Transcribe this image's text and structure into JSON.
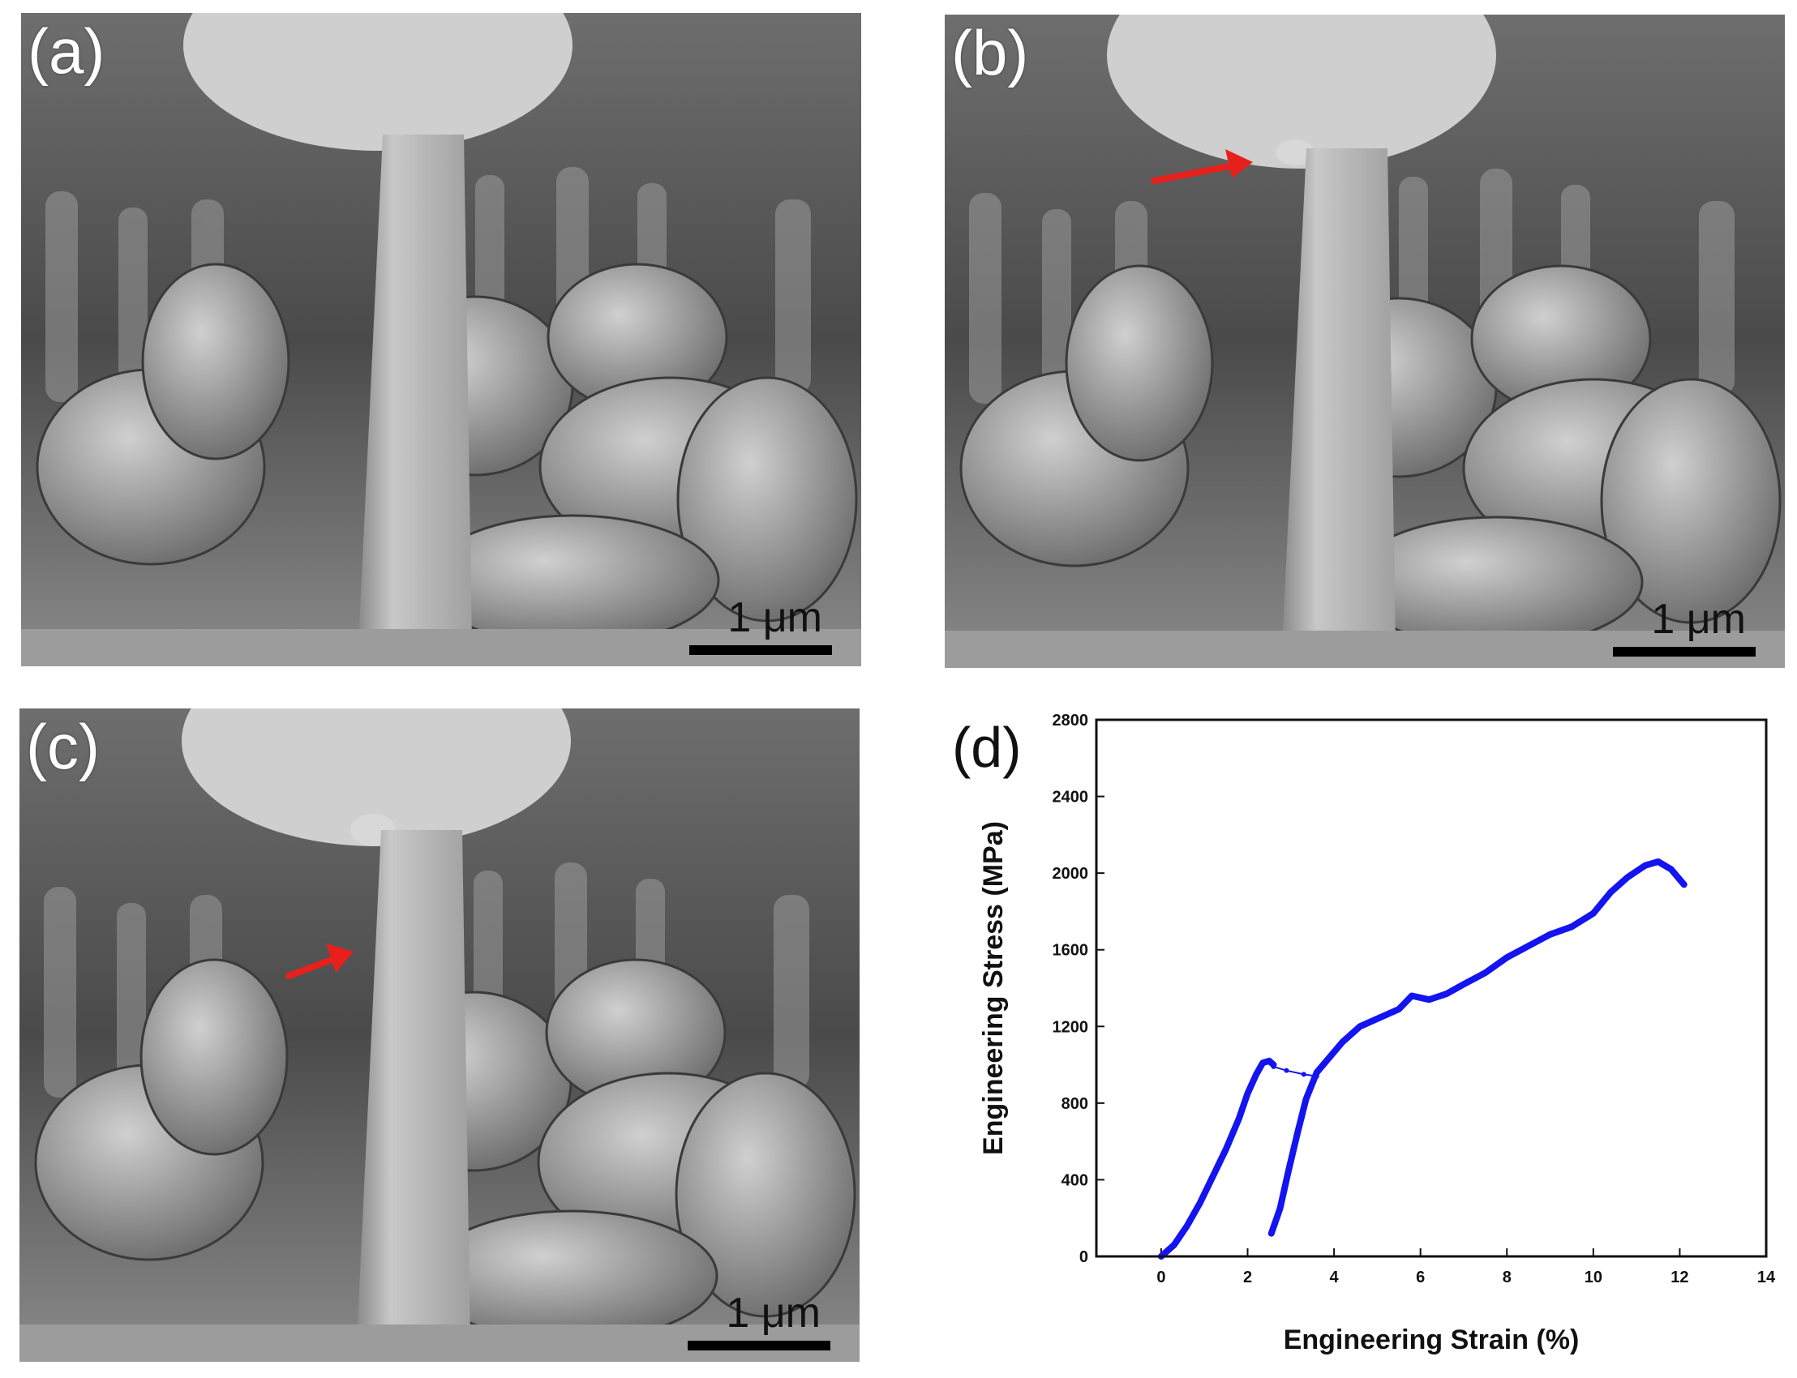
{
  "panels": {
    "a": {
      "label": "(a)",
      "scale": "1 μm"
    },
    "b": {
      "label": "(b)",
      "scale": "1 μm"
    },
    "c": {
      "label": "(c)",
      "scale": "1 μm"
    },
    "d": {
      "label": "(d)"
    }
  },
  "colors": {
    "arrow": "#e8201c",
    "curve": "#1414f0"
  },
  "chart_data": {
    "type": "scatter",
    "xlabel": "Engineering Strain (%)",
    "ylabel": "Engineering Stress (MPa)",
    "xlim": [
      -1.5,
      14
    ],
    "ylim": [
      0,
      2800
    ],
    "xticks": [
      0,
      2,
      4,
      6,
      8,
      10,
      12,
      14
    ],
    "yticks": [
      0,
      400,
      800,
      1200,
      1600,
      2000,
      2400,
      2800
    ],
    "grid": false,
    "series": [
      {
        "points": [
          [
            0.0,
            0
          ],
          [
            0.3,
            60
          ],
          [
            0.6,
            160
          ],
          [
            0.9,
            280
          ],
          [
            1.2,
            420
          ],
          [
            1.5,
            560
          ],
          [
            1.8,
            720
          ],
          [
            2.0,
            850
          ],
          [
            2.2,
            950
          ],
          [
            2.35,
            1010
          ],
          [
            2.5,
            1020
          ],
          [
            2.6,
            1000
          ]
        ]
      },
      {
        "points": [
          [
            2.6,
            990
          ],
          [
            2.9,
            970
          ],
          [
            3.3,
            950
          ],
          [
            3.6,
            940
          ]
        ]
      },
      {
        "points": [
          [
            2.55,
            120
          ],
          [
            2.75,
            250
          ],
          [
            2.95,
            450
          ],
          [
            3.15,
            640
          ],
          [
            3.35,
            820
          ],
          [
            3.6,
            960
          ],
          [
            3.9,
            1040
          ],
          [
            4.2,
            1120
          ],
          [
            4.6,
            1200
          ],
          [
            5.0,
            1240
          ],
          [
            5.5,
            1290
          ],
          [
            5.8,
            1360
          ],
          [
            6.2,
            1340
          ],
          [
            6.6,
            1370
          ],
          [
            7.0,
            1420
          ],
          [
            7.5,
            1480
          ],
          [
            8.0,
            1560
          ],
          [
            8.5,
            1620
          ],
          [
            9.0,
            1680
          ],
          [
            9.5,
            1720
          ],
          [
            10.0,
            1790
          ],
          [
            10.4,
            1900
          ],
          [
            10.8,
            1980
          ],
          [
            11.2,
            2040
          ],
          [
            11.5,
            2060
          ],
          [
            11.8,
            2020
          ],
          [
            12.1,
            1940
          ]
        ]
      }
    ]
  }
}
